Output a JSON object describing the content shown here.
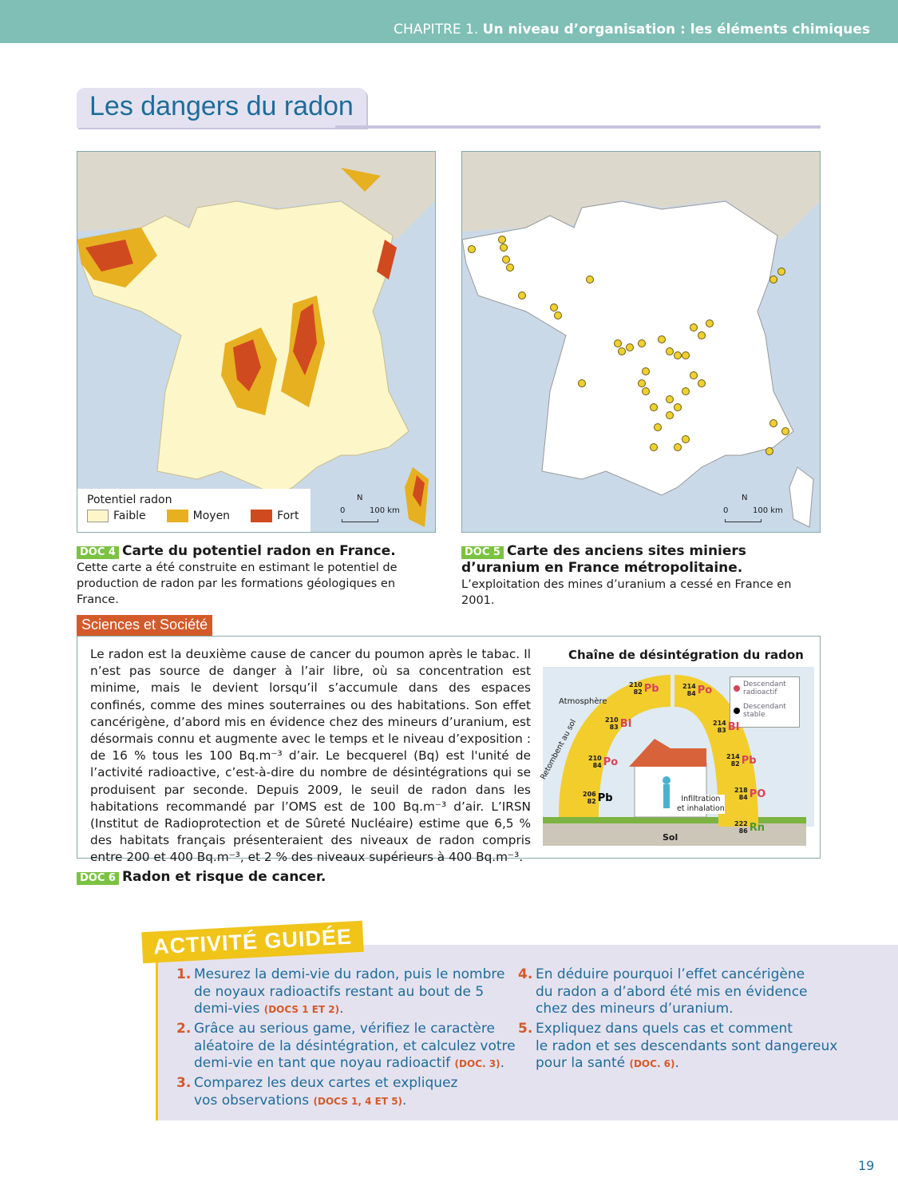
{
  "header": {
    "chapter": "CHAPITRE 1.",
    "chapter_title": "Un niveau d’organisation : les éléments chimiques"
  },
  "page_title": "Les dangers du radon",
  "doc4": {
    "badge": "DOC 4",
    "title": "Carte du potentiel radon en France.",
    "text": "Cette carte a été construite en estimant le potentiel de production de radon par les formations géologiques en France.",
    "legend_title": "Potentiel radon",
    "legend": [
      {
        "label": "Faible",
        "color": "#fdf6c9"
      },
      {
        "label": "Moyen",
        "color": "#e6b020"
      },
      {
        "label": "Fort",
        "color": "#d04a20"
      }
    ],
    "north": "N",
    "scale_0": "0",
    "scale_100": "100 km"
  },
  "doc5": {
    "badge": "DOC 5",
    "title": "Carte des anciens sites miniers d’uranium en France métropolitaine.",
    "text": "L’exploitation des mines d’uranium a cessé en France en 2001.",
    "north": "N",
    "scale_0": "0",
    "scale_100": "100 km",
    "dot_color": "#f0d030"
  },
  "science": {
    "tab": "Sciences et Société",
    "text": "Le radon est la deuxième cause de cancer du poumon après le tabac. Il n’est pas source de danger à l’air libre, où sa concentration est minime, mais le devient lorsqu’il s’accumule dans des espaces confinés, comme des mines souterraines ou des habitations. Son effet cancérigène, d’abord mis en évidence chez des mineurs d’uranium, est désormais connu et augmente avec le temps et le niveau d’exposition : de 16 % tous les 100 Bq.m⁻³ d’air. Le becquerel (Bq) est l'unité de l’activité radioactive, c’est-à-dire du nombre de désintégrations qui se produisent par seconde. Depuis 2009, le seuil de radon dans les habitations recommandé par l’OMS est de 100 Bq.m⁻³ d’air. L’IRSN (Institut de Radioprotection et de Sûreté Nucléaire) estime que 6,5 % des habitats français présenteraient des niveaux de radon compris entre 200 et 400 Bq.m⁻³, et 2 % des niveaux supérieurs à 400 Bq.m⁻³.",
    "diagram": {
      "title": "Chaîne de désintégration du radon",
      "atmosphere": "Atmosphère",
      "ground": "Sol",
      "fallout": "Retombent au sol",
      "infiltration": "Infiltration",
      "inhalation": "et inhalation",
      "legend_radioactive": "Descendant radioactif",
      "legend_stable": "Descendant stable",
      "chain": [
        {
          "A": "222",
          "Z": "86",
          "el": "Rn"
        },
        {
          "A": "218",
          "Z": "84",
          "el": "PO"
        },
        {
          "A": "214",
          "Z": "82",
          "el": "Pb"
        },
        {
          "A": "214",
          "Z": "83",
          "el": "BI"
        },
        {
          "A": "214",
          "Z": "84",
          "el": "Po"
        },
        {
          "A": "210",
          "Z": "82",
          "el": "Pb"
        },
        {
          "A": "210",
          "Z": "83",
          "el": "BI"
        },
        {
          "A": "210",
          "Z": "84",
          "el": "Po"
        },
        {
          "A": "206",
          "Z": "82",
          "el": "Pb"
        }
      ]
    },
    "badge": "DOC 6",
    "caption": "Radon et risque de cancer."
  },
  "activity": {
    "tab": "ACTIVITÉ GUIDÉE",
    "questions": [
      {
        "n": "1.",
        "l1": "Mesurez la demi-vie du radon, puis le nombre",
        "l2": "de noyaux radioactifs restant au bout de 5",
        "l3": "demi-vies",
        "ref": "(DOCS 1 ET 2)"
      },
      {
        "n": "2.",
        "l1": "Grâce au serious game, vérifiez le caractère",
        "l2": "aléatoire de la désintégration, et calculez votre",
        "l3": "demi-vie en tant que noyau radioactif",
        "ref": "(DOC. 3)"
      },
      {
        "n": "3.",
        "l1": "Comparez les deux cartes et expliquez",
        "l2": "vos observations",
        "ref": "(DOCS 1, 4 ET 5)"
      },
      {
        "n": "4.",
        "l1": "En déduire pourquoi l’effet cancérigène",
        "l2": "du radon a d’abord été mis en évidence",
        "l3": "chez des mineurs d’uranium."
      },
      {
        "n": "5.",
        "l1": "Expliquez dans quels cas et comment",
        "l2": "le radon et ses descendants sont dangereux",
        "l3": "pour la santé",
        "ref": "(DOC. 6)"
      }
    ]
  },
  "page_number": "19"
}
